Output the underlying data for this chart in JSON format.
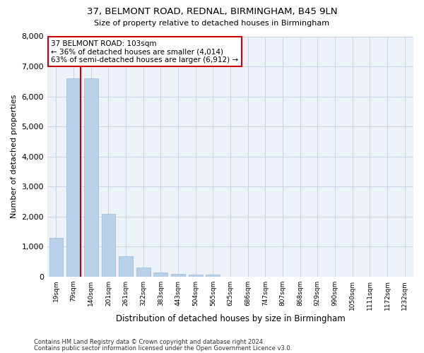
{
  "title_line1": "37, BELMONT ROAD, REDNAL, BIRMINGHAM, B45 9LN",
  "title_line2": "Size of property relative to detached houses in Birmingham",
  "xlabel": "Distribution of detached houses by size in Birmingham",
  "ylabel": "Number of detached properties",
  "categories": [
    "19sqm",
    "79sqm",
    "140sqm",
    "201sqm",
    "261sqm",
    "322sqm",
    "383sqm",
    "443sqm",
    "504sqm",
    "565sqm",
    "625sqm",
    "686sqm",
    "747sqm",
    "807sqm",
    "868sqm",
    "929sqm",
    "990sqm",
    "1050sqm",
    "1111sqm",
    "1172sqm",
    "1232sqm"
  ],
  "values": [
    1300,
    6600,
    6600,
    2100,
    680,
    300,
    140,
    90,
    60,
    80,
    10,
    5,
    5,
    5,
    5,
    5,
    5,
    5,
    5,
    5,
    5
  ],
  "bar_color": "#b8d0e8",
  "bar_edgecolor": "#9ab8d8",
  "property_line_color": "#cc0000",
  "annotation_line1": "37 BELMONT ROAD: 103sqm",
  "annotation_line2": "← 36% of detached houses are smaller (4,014)",
  "annotation_line3": "63% of semi-detached houses are larger (6,912) →",
  "annotation_box_color": "#cc0000",
  "ylim": [
    0,
    8000
  ],
  "yticks": [
    0,
    1000,
    2000,
    3000,
    4000,
    5000,
    6000,
    7000,
    8000
  ],
  "grid_color": "#c8d4e8",
  "bg_color": "#edf2f9",
  "footnote1": "Contains HM Land Registry data © Crown copyright and database right 2024.",
  "footnote2": "Contains public sector information licensed under the Open Government Licence v3.0."
}
